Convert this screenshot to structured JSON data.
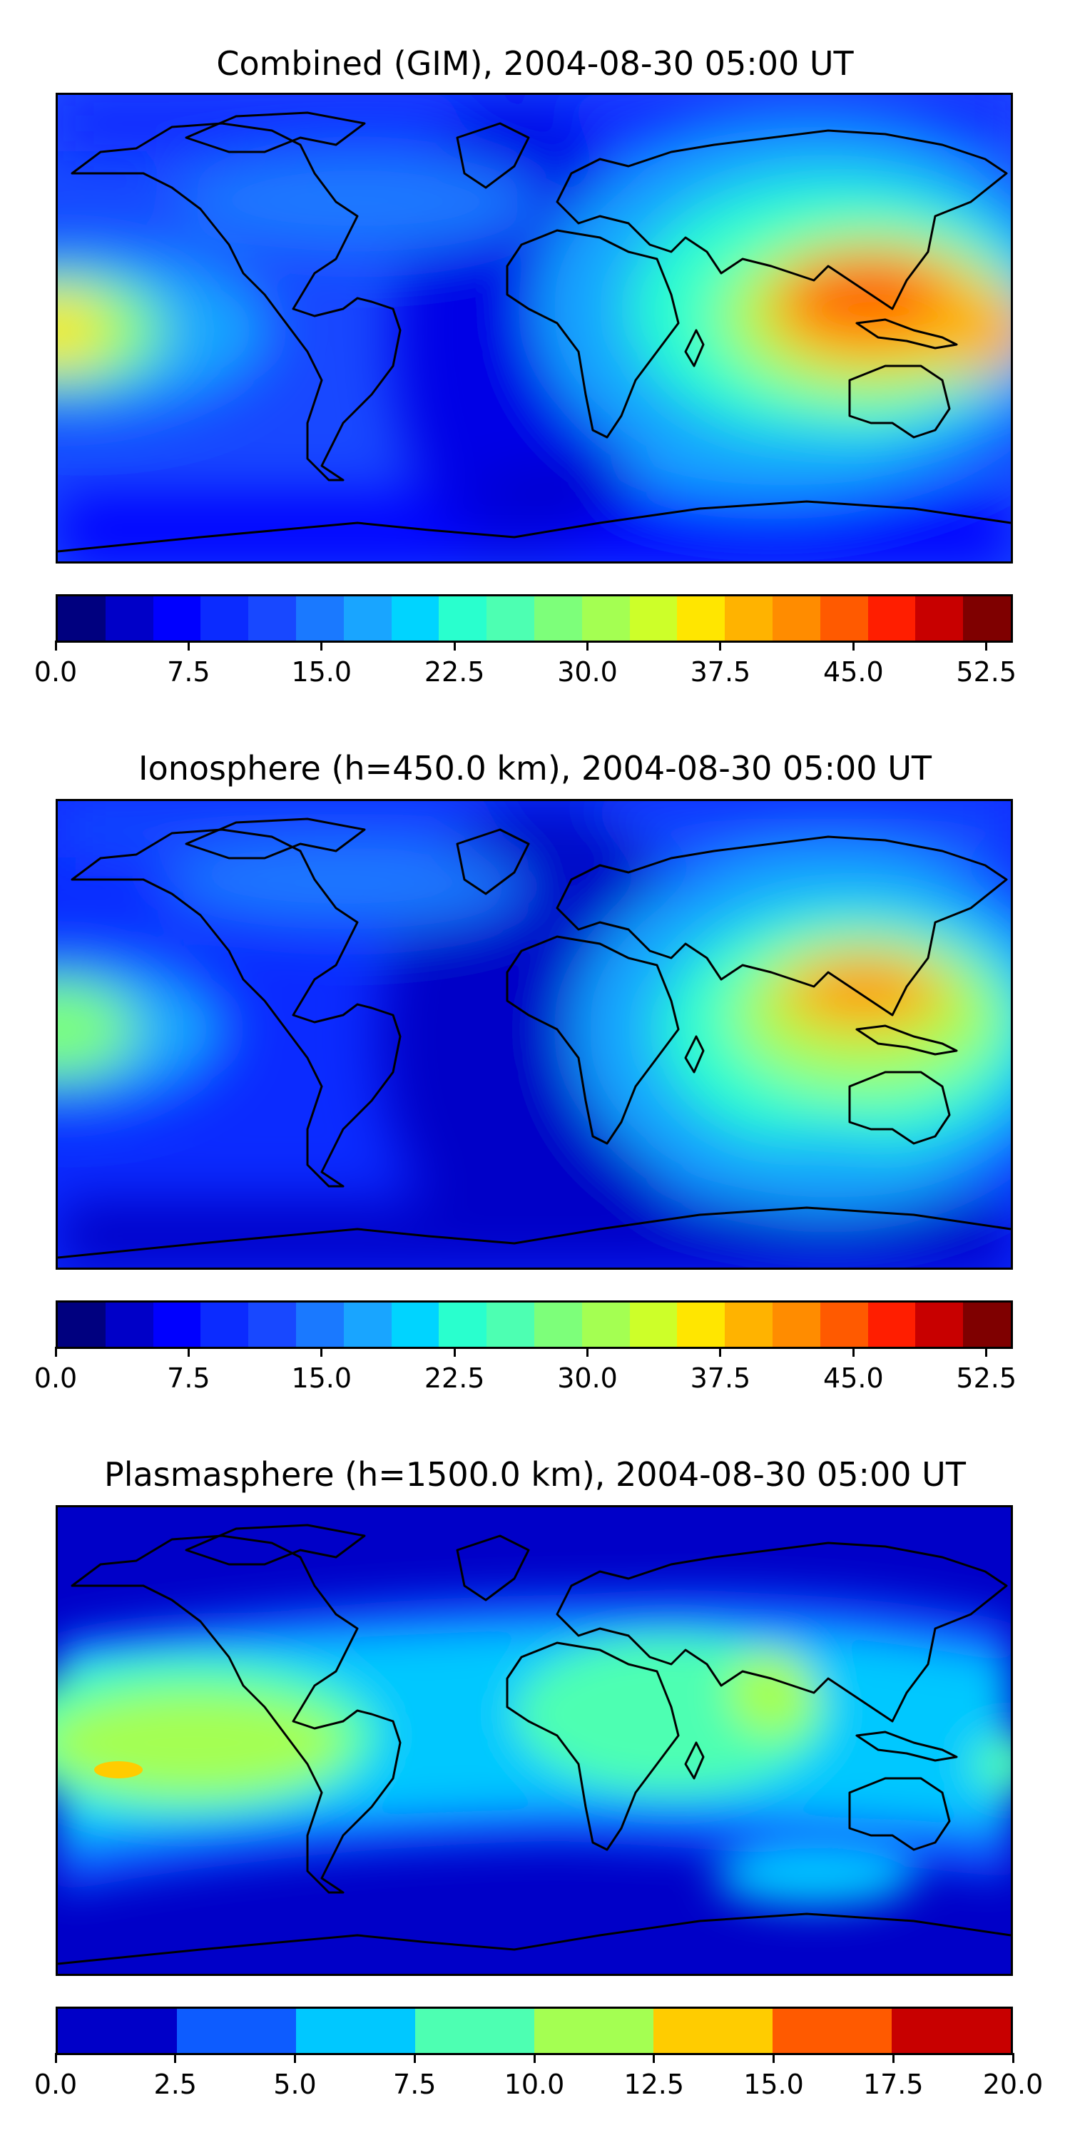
{
  "panels": [
    {
      "title": "Combined (GIM), 2004-08-30 05:00 UT",
      "colorbar": {
        "min": 0,
        "max": 54,
        "colors": [
          "#00007f",
          "#0000c8",
          "#0000ff",
          "#0b2bff",
          "#1848ff",
          "#1a79ff",
          "#19a5ff",
          "#00d4ff",
          "#29ffce",
          "#4dffb2",
          "#7dff7a",
          "#a4ff52",
          "#cdff29",
          "#ffe600",
          "#ffb300",
          "#ff8c00",
          "#ff5a00",
          "#ff1e00",
          "#c80000",
          "#7f0000"
        ],
        "ticks": [
          "0.0",
          "7.5",
          "15.0",
          "22.5",
          "30.0",
          "37.5",
          "45.0",
          "52.5"
        ],
        "tick_values": [
          0,
          7.5,
          15,
          22.5,
          30,
          37.5,
          45,
          52.5
        ]
      }
    },
    {
      "title": "Ionosphere  (h=450.0 km), 2004-08-30 05:00 UT",
      "colorbar": {
        "min": 0,
        "max": 54,
        "colors": [
          "#00007f",
          "#0000c8",
          "#0000ff",
          "#0b2bff",
          "#1848ff",
          "#1a79ff",
          "#19a5ff",
          "#00d4ff",
          "#29ffce",
          "#4dffb2",
          "#7dff7a",
          "#a4ff52",
          "#cdff29",
          "#ffe600",
          "#ffb300",
          "#ff8c00",
          "#ff5a00",
          "#ff1e00",
          "#c80000",
          "#7f0000"
        ],
        "ticks": [
          "0.0",
          "7.5",
          "15.0",
          "22.5",
          "30.0",
          "37.5",
          "45.0",
          "52.5"
        ],
        "tick_values": [
          0,
          7.5,
          15,
          22.5,
          30,
          37.5,
          45,
          52.5
        ]
      }
    },
    {
      "title": "Plasmasphere (h=1500.0 km), 2004-08-30 05:00 UT",
      "colorbar": {
        "min": 0,
        "max": 20,
        "colors": [
          "#0000c8",
          "#0d5cff",
          "#00c8ff",
          "#4dffb2",
          "#a4ff52",
          "#ffcc00",
          "#ff5a00",
          "#c80000"
        ],
        "ticks": [
          "0.0",
          "2.5",
          "5.0",
          "7.5",
          "10.0",
          "12.5",
          "15.0",
          "17.5",
          "20.0"
        ],
        "tick_values": [
          0,
          2.5,
          5,
          7.5,
          10,
          12.5,
          15,
          17.5,
          20
        ]
      }
    }
  ],
  "map_style": {
    "coastline_color": "#000000",
    "background_color": "#0000c8"
  }
}
